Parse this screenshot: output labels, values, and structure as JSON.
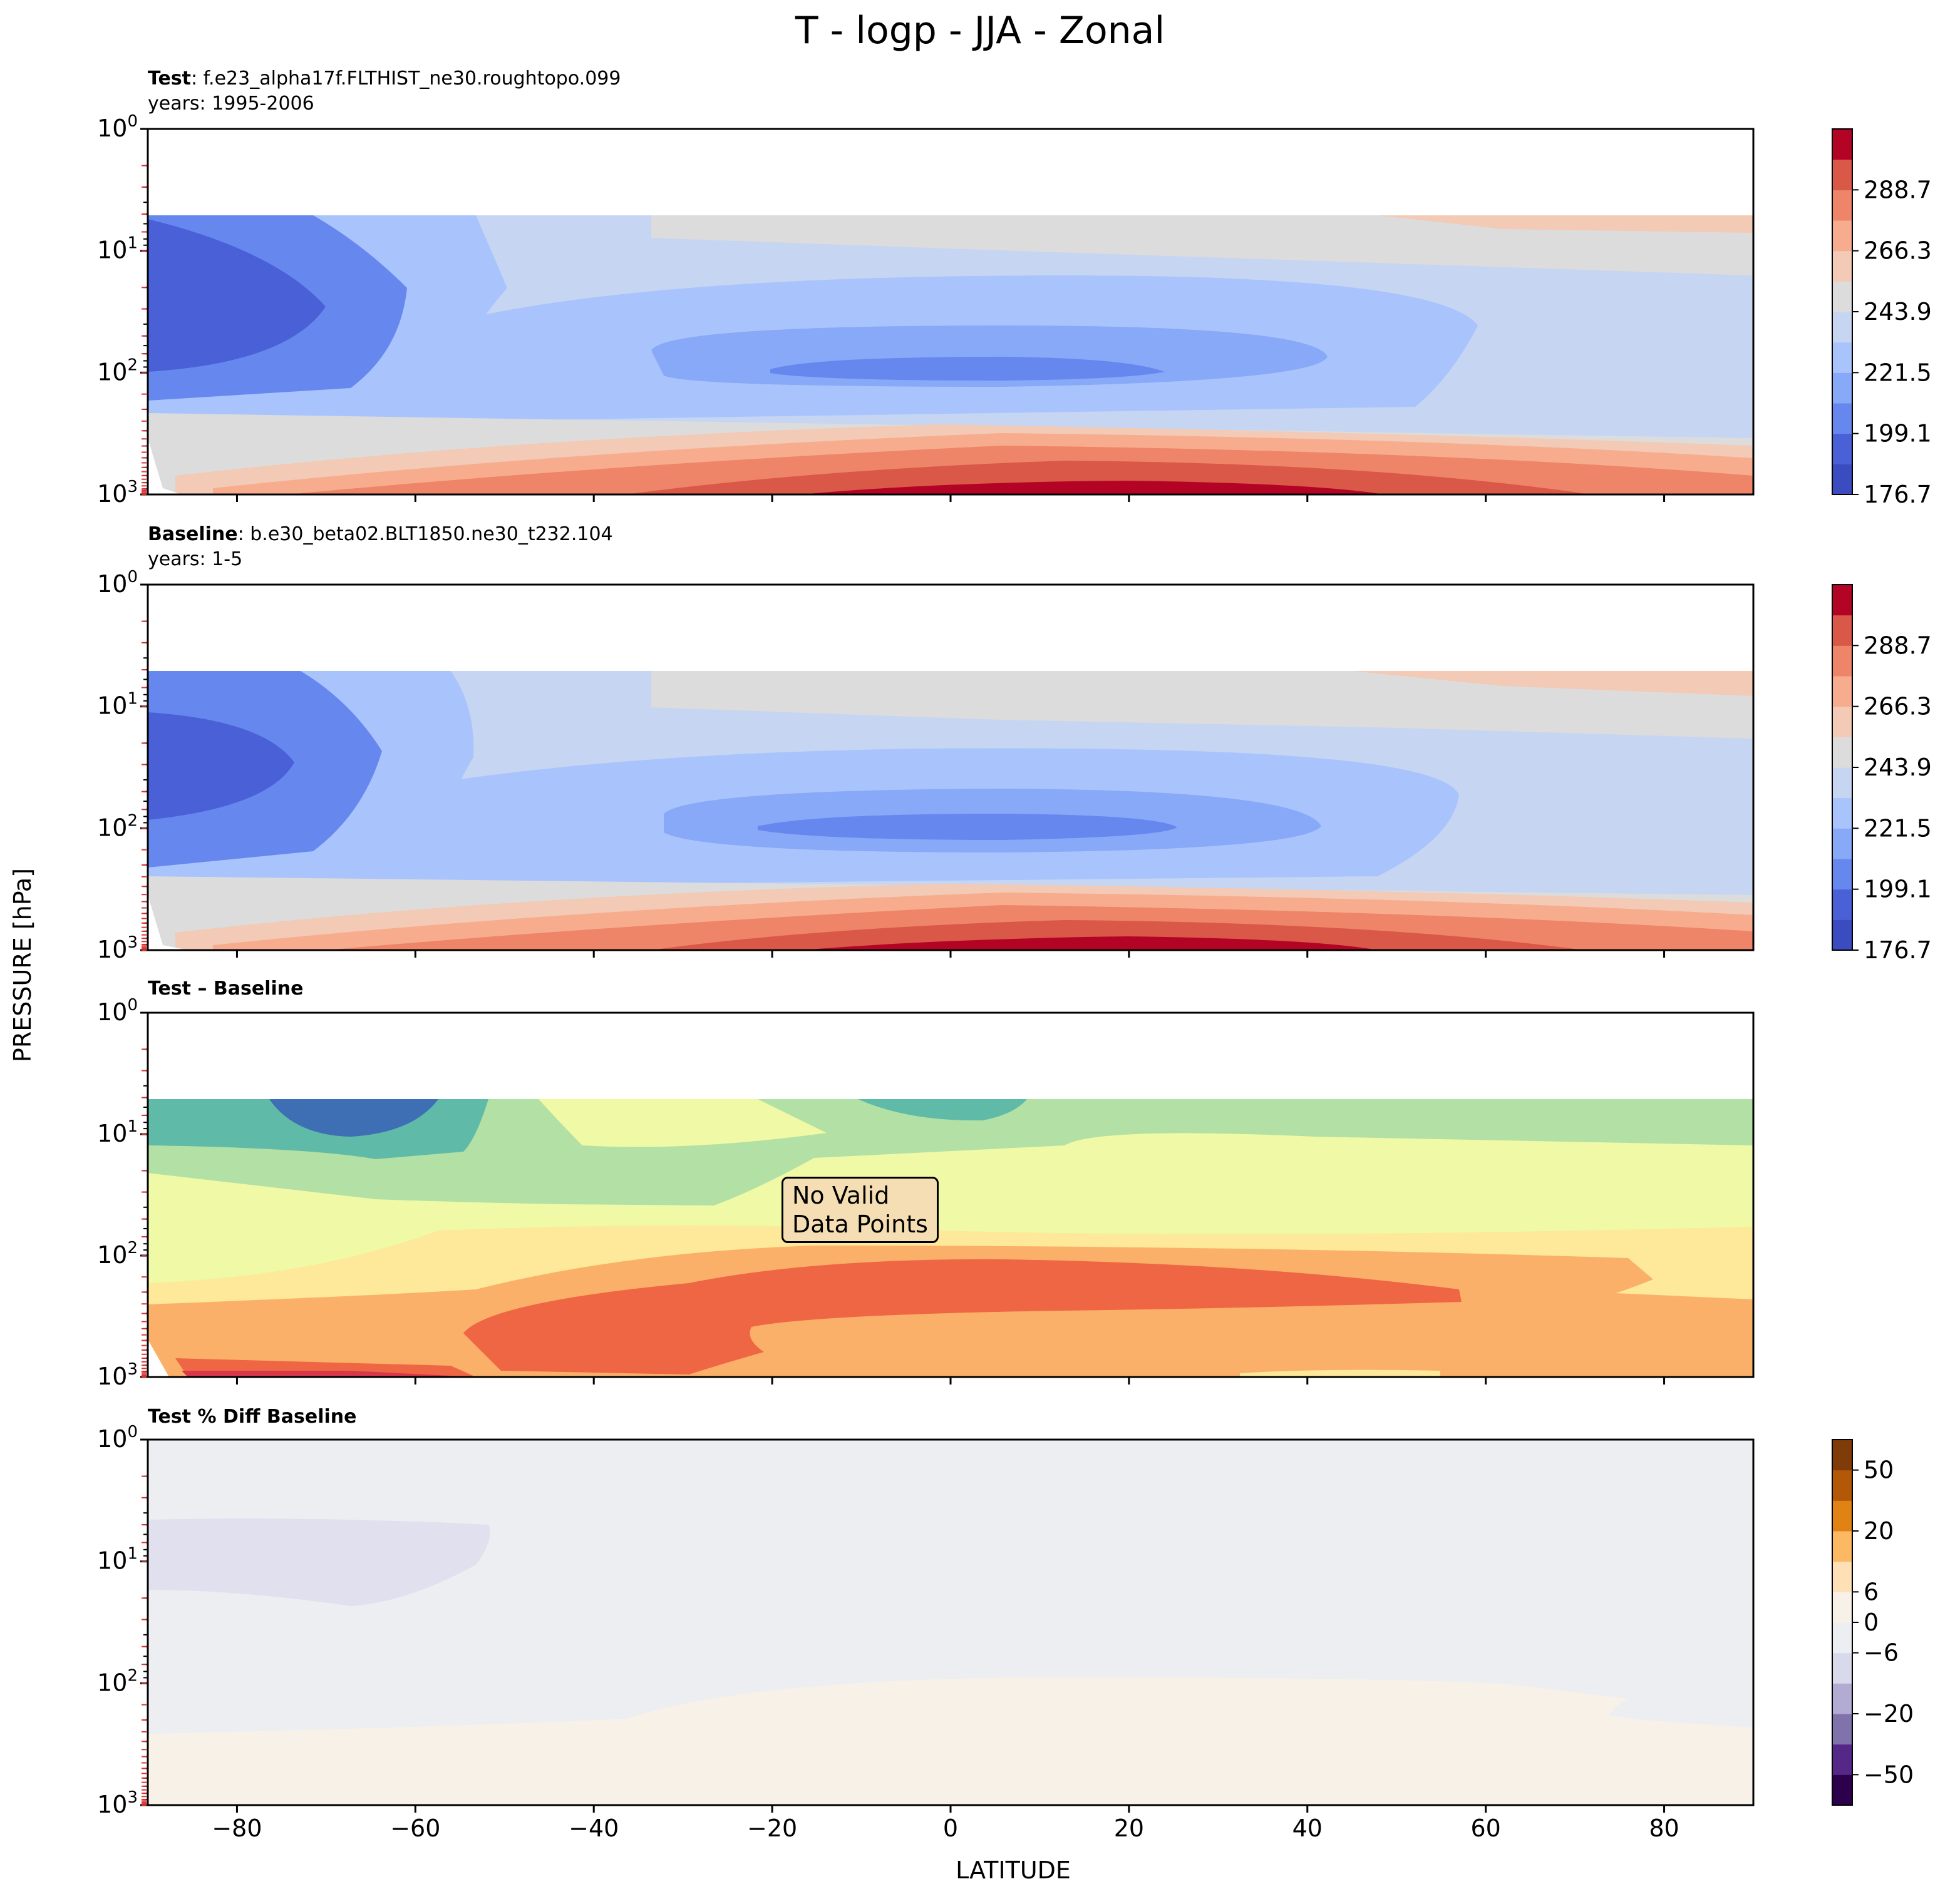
{
  "figure": {
    "title": "T - logp - JJA - Zonal",
    "xlabel": "LATITUDE",
    "ylabel": "PRESSURE [hPa]"
  },
  "panels": {
    "test": {
      "bold": "Test",
      "name": ": f.e23_alpha17f.FLTHIST_ne30.roughtopo.099",
      "years": "years: 1995-2006"
    },
    "baseline": {
      "bold": "Baseline",
      "name": ": b.e30_beta02.BLT1850.ne30_t232.104",
      "years": "years: 1-5"
    },
    "diff": {
      "bold": "Test – Baseline",
      "note": [
        "No Valid",
        "Data Points"
      ]
    },
    "pctdiff": {
      "bold": "Test % Diff Baseline"
    }
  },
  "colors": {
    "temperature_levels": [
      "#3b4cc0",
      "#4a60d6",
      "#6688ee",
      "#88a8f8",
      "#a9c4fc",
      "#c6d6f2",
      "#dddcdc",
      "#f2cab5",
      "#f7ac8e",
      "#ee8468",
      "#d95847",
      "#b40426"
    ],
    "diff_levels": [
      "#3e6eb4",
      "#5fbba8",
      "#b3e0a4",
      "#eff9a6",
      "#fee89a",
      "#fbb069",
      "#ef6645",
      "#d9384a"
    ],
    "pct_levels": [
      "#2d004b",
      "#542788",
      "#8073ac",
      "#b2abd2",
      "#d8daeb",
      "#eceef2",
      "#f8f1e8",
      "#fee0b6",
      "#fdb863",
      "#e08214",
      "#b35806",
      "#7f3b08"
    ]
  },
  "chart_data": [
    {
      "type": "contour",
      "panel": "Test",
      "x": {
        "label": "LATITUDE",
        "range": [
          -90,
          90
        ],
        "ticks": [
          -80,
          -60,
          -40,
          -20,
          0,
          20,
          40,
          60,
          80
        ]
      },
      "y": {
        "label": "PRESSURE [hPa]",
        "scale": "log",
        "inverted": true,
        "range": [
          1,
          1000
        ],
        "ticks": [
          "10^0",
          "10^1",
          "10^2",
          "10^3"
        ]
      },
      "colorbar": {
        "ticks": [
          "176.7",
          "199.1",
          "221.5",
          "243.9",
          "266.3",
          "288.7"
        ]
      },
      "features": [
        "polar cold core near 20-100 hPa at -90 to -70",
        "tropical tropopause minimum near 100 hPa",
        "warm surface maximum near 1000 hPa at 20N"
      ]
    },
    {
      "type": "contour",
      "panel": "Baseline",
      "x": {
        "range": [
          -90,
          90
        ],
        "ticks": [
          -80,
          -60,
          -40,
          -20,
          0,
          20,
          40,
          60,
          80
        ]
      },
      "y": {
        "scale": "log",
        "inverted": true,
        "range": [
          1,
          1000
        ]
      },
      "colorbar": {
        "ticks": [
          "176.7",
          "199.1",
          "221.5",
          "243.9",
          "266.3",
          "288.7"
        ]
      }
    },
    {
      "type": "contour",
      "panel": "Test – Baseline",
      "x": {
        "range": [
          -90,
          90
        ],
        "ticks": [
          -80,
          -60,
          -40,
          -20,
          0,
          20,
          40,
          60,
          80
        ]
      },
      "y": {
        "scale": "log",
        "inverted": true,
        "range": [
          1,
          1000
        ]
      },
      "annotation": "No Valid Data Points"
    },
    {
      "type": "contour",
      "panel": "Test % Diff Baseline",
      "x": {
        "label": "LATITUDE",
        "range": [
          -90,
          90
        ],
        "ticks": [
          -80,
          -60,
          -40,
          -20,
          0,
          20,
          40,
          60,
          80
        ]
      },
      "y": {
        "scale": "log",
        "inverted": true,
        "range": [
          1,
          1000
        ]
      },
      "colorbar": {
        "ticks": [
          "−50",
          "−20",
          "−6",
          "0",
          "6",
          "20",
          "50"
        ]
      }
    }
  ]
}
